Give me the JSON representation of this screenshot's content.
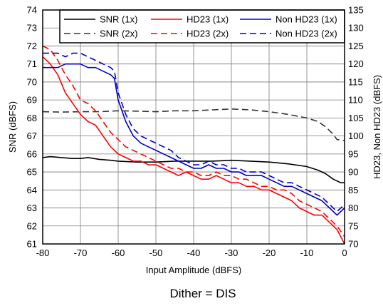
{
  "chart_data": {
    "type": "line",
    "caption": "Dither = DIS",
    "xlabel": "Input Amplitude (dBFS)",
    "ylabel_left": "SNR (dBFS)",
    "ylabel_right": "HD23, Non HD23 (dBFS)",
    "xlim": [
      -80,
      0
    ],
    "ylim_left": [
      61,
      74
    ],
    "ylim_right": [
      70,
      135
    ],
    "x_ticks": [
      -80,
      -70,
      -60,
      -50,
      -40,
      -30,
      -20,
      -10,
      0
    ],
    "y_ticks_left": [
      61,
      62,
      63,
      64,
      65,
      66,
      67,
      68,
      69,
      70,
      71,
      72,
      73,
      74
    ],
    "y_ticks_right": [
      70,
      75,
      80,
      85,
      90,
      95,
      100,
      105,
      110,
      115,
      120,
      125,
      130,
      135
    ],
    "grid": true,
    "legend_position": "top-right",
    "series": [
      {
        "name": "SNR (1x)",
        "axis": "left",
        "color": "#000000",
        "dash": "solid",
        "points": [
          [
            -80,
            65.8
          ],
          [
            -78,
            65.85
          ],
          [
            -75,
            65.8
          ],
          [
            -72,
            65.75
          ],
          [
            -70,
            65.75
          ],
          [
            -68,
            65.8
          ],
          [
            -65,
            65.7
          ],
          [
            -62,
            65.65
          ],
          [
            -60,
            65.6
          ],
          [
            -55,
            65.55
          ],
          [
            -50,
            65.55
          ],
          [
            -45,
            65.6
          ],
          [
            -40,
            65.6
          ],
          [
            -35,
            65.6
          ],
          [
            -30,
            65.65
          ],
          [
            -25,
            65.6
          ],
          [
            -20,
            65.55
          ],
          [
            -15,
            65.45
          ],
          [
            -10,
            65.3
          ],
          [
            -7,
            65.1
          ],
          [
            -5,
            64.9
          ],
          [
            -3,
            64.6
          ],
          [
            -1,
            64.4
          ],
          [
            0,
            64.4
          ]
        ]
      },
      {
        "name": "SNR (2x)",
        "axis": "left",
        "color": "#333333",
        "dash": "dashed",
        "points": [
          [
            -80,
            68.35
          ],
          [
            -75,
            68.33
          ],
          [
            -70,
            68.35
          ],
          [
            -65,
            68.35
          ],
          [
            -60,
            68.4
          ],
          [
            -55,
            68.38
          ],
          [
            -50,
            68.35
          ],
          [
            -45,
            68.4
          ],
          [
            -40,
            68.4
          ],
          [
            -35,
            68.45
          ],
          [
            -30,
            68.5
          ],
          [
            -25,
            68.45
          ],
          [
            -20,
            68.35
          ],
          [
            -15,
            68.2
          ],
          [
            -10,
            68.0
          ],
          [
            -7,
            67.8
          ],
          [
            -5,
            67.5
          ],
          [
            -3,
            67.1
          ],
          [
            -2,
            66.8
          ],
          [
            0,
            66.75
          ]
        ]
      },
      {
        "name": "HD23 (1x)",
        "axis": "right",
        "color": "#ff0000",
        "dash": "solid",
        "points": [
          [
            -80,
            122
          ],
          [
            -78,
            120
          ],
          [
            -76,
            117
          ],
          [
            -74,
            112
          ],
          [
            -72,
            109
          ],
          [
            -70,
            106
          ],
          [
            -68,
            104
          ],
          [
            -66,
            103
          ],
          [
            -64,
            100
          ],
          [
            -62,
            97
          ],
          [
            -60,
            95
          ],
          [
            -58,
            94
          ],
          [
            -56,
            93
          ],
          [
            -54,
            93
          ],
          [
            -52,
            92
          ],
          [
            -50,
            92
          ],
          [
            -48,
            91
          ],
          [
            -46,
            90
          ],
          [
            -44,
            89
          ],
          [
            -42,
            90
          ],
          [
            -40,
            89
          ],
          [
            -38,
            88
          ],
          [
            -36,
            88
          ],
          [
            -34,
            89
          ],
          [
            -32,
            88
          ],
          [
            -30,
            87
          ],
          [
            -28,
            87
          ],
          [
            -26,
            86
          ],
          [
            -24,
            86
          ],
          [
            -22,
            85
          ],
          [
            -20,
            85
          ],
          [
            -18,
            84
          ],
          [
            -16,
            83
          ],
          [
            -14,
            82
          ],
          [
            -12,
            80
          ],
          [
            -10,
            79
          ],
          [
            -8,
            78
          ],
          [
            -6,
            78
          ],
          [
            -4,
            76
          ],
          [
            -2,
            74
          ],
          [
            0,
            70
          ]
        ]
      },
      {
        "name": "HD23 (2x)",
        "axis": "right",
        "color": "#ff0000",
        "dash": "dashed",
        "points": [
          [
            -80,
            125
          ],
          [
            -78,
            124
          ],
          [
            -76,
            121
          ],
          [
            -74,
            117
          ],
          [
            -72,
            114
          ],
          [
            -70,
            110
          ],
          [
            -68,
            109
          ],
          [
            -66,
            107
          ],
          [
            -64,
            104
          ],
          [
            -62,
            101
          ],
          [
            -60,
            99
          ],
          [
            -58,
            97
          ],
          [
            -56,
            96
          ],
          [
            -54,
            95
          ],
          [
            -52,
            94
          ],
          [
            -50,
            93
          ],
          [
            -48,
            92
          ],
          [
            -46,
            91
          ],
          [
            -44,
            91
          ],
          [
            -42,
            90
          ],
          [
            -40,
            90
          ],
          [
            -38,
            89
          ],
          [
            -36,
            89
          ],
          [
            -34,
            90
          ],
          [
            -32,
            89
          ],
          [
            -30,
            89
          ],
          [
            -28,
            88
          ],
          [
            -26,
            88
          ],
          [
            -24,
            87
          ],
          [
            -22,
            86
          ],
          [
            -20,
            86
          ],
          [
            -18,
            85
          ],
          [
            -16,
            85
          ],
          [
            -14,
            84
          ],
          [
            -12,
            82
          ],
          [
            -10,
            81
          ],
          [
            -8,
            80
          ],
          [
            -6,
            79
          ],
          [
            -4,
            77
          ],
          [
            -2,
            75
          ],
          [
            0,
            72
          ]
        ]
      },
      {
        "name": "Non HD23 (1x)",
        "axis": "right",
        "color": "#0000cc",
        "dash": "solid",
        "points": [
          [
            -80,
            119
          ],
          [
            -78,
            119
          ],
          [
            -76,
            119
          ],
          [
            -74,
            120
          ],
          [
            -72,
            120
          ],
          [
            -70,
            120
          ],
          [
            -68,
            119
          ],
          [
            -66,
            119
          ],
          [
            -64,
            118
          ],
          [
            -62,
            117
          ],
          [
            -61,
            116
          ],
          [
            -60,
            110
          ],
          [
            -58,
            104
          ],
          [
            -56,
            100
          ],
          [
            -54,
            98
          ],
          [
            -52,
            97
          ],
          [
            -50,
            96
          ],
          [
            -48,
            95
          ],
          [
            -46,
            94
          ],
          [
            -44,
            93
          ],
          [
            -42,
            92
          ],
          [
            -40,
            91
          ],
          [
            -38,
            91
          ],
          [
            -36,
            92
          ],
          [
            -34,
            91
          ],
          [
            -32,
            91
          ],
          [
            -30,
            90
          ],
          [
            -28,
            90
          ],
          [
            -26,
            89
          ],
          [
            -24,
            89
          ],
          [
            -22,
            89
          ],
          [
            -20,
            88
          ],
          [
            -18,
            87
          ],
          [
            -16,
            86
          ],
          [
            -14,
            86
          ],
          [
            -12,
            85
          ],
          [
            -10,
            84
          ],
          [
            -8,
            83
          ],
          [
            -6,
            82
          ],
          [
            -4,
            80
          ],
          [
            -2,
            78
          ],
          [
            0,
            80
          ]
        ]
      },
      {
        "name": "Non HD23 (2x)",
        "axis": "right",
        "color": "#0000cc",
        "dash": "dashed",
        "points": [
          [
            -80,
            123
          ],
          [
            -78,
            123
          ],
          [
            -76,
            123
          ],
          [
            -74,
            122
          ],
          [
            -72,
            123
          ],
          [
            -70,
            123
          ],
          [
            -68,
            122
          ],
          [
            -66,
            121
          ],
          [
            -64,
            120
          ],
          [
            -62,
            119
          ],
          [
            -61,
            118
          ],
          [
            -60,
            112
          ],
          [
            -58,
            106
          ],
          [
            -56,
            102
          ],
          [
            -54,
            100
          ],
          [
            -52,
            99
          ],
          [
            -50,
            98
          ],
          [
            -48,
            97
          ],
          [
            -46,
            96
          ],
          [
            -44,
            94
          ],
          [
            -42,
            93
          ],
          [
            -40,
            92
          ],
          [
            -38,
            92
          ],
          [
            -36,
            93
          ],
          [
            -34,
            92
          ],
          [
            -32,
            92
          ],
          [
            -30,
            91
          ],
          [
            -28,
            91
          ],
          [
            -26,
            90
          ],
          [
            -24,
            90
          ],
          [
            -22,
            90
          ],
          [
            -20,
            89
          ],
          [
            -18,
            88
          ],
          [
            -16,
            87
          ],
          [
            -14,
            87
          ],
          [
            -12,
            86
          ],
          [
            -10,
            85
          ],
          [
            -8,
            84
          ],
          [
            -6,
            83
          ],
          [
            -4,
            81
          ],
          [
            -2,
            79
          ],
          [
            0,
            81
          ]
        ]
      }
    ]
  }
}
